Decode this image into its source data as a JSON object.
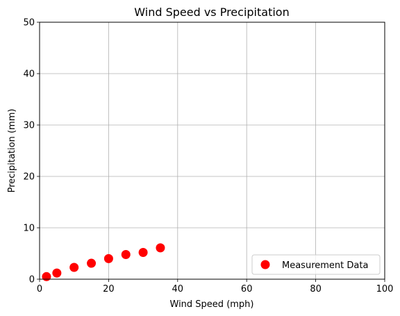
{
  "chart_data": {
    "type": "scatter",
    "title": "Wind Speed vs Precipitation",
    "xlabel": "Wind Speed (mph)",
    "ylabel": "Precipitation (mm)",
    "xlim": [
      0,
      100
    ],
    "ylim": [
      0,
      50
    ],
    "xticks": [
      0,
      20,
      40,
      60,
      80,
      100
    ],
    "yticks": [
      0,
      10,
      20,
      30,
      40,
      50
    ],
    "grid": true,
    "legend_position": "bottom-right",
    "series": [
      {
        "name": "Measurement Data",
        "color": "#ff0000",
        "x": [
          2,
          5,
          10,
          15,
          20,
          25,
          30,
          35
        ],
        "y": [
          0.5,
          1.2,
          2.3,
          3.1,
          4.0,
          4.8,
          5.2,
          6.1
        ]
      }
    ]
  }
}
